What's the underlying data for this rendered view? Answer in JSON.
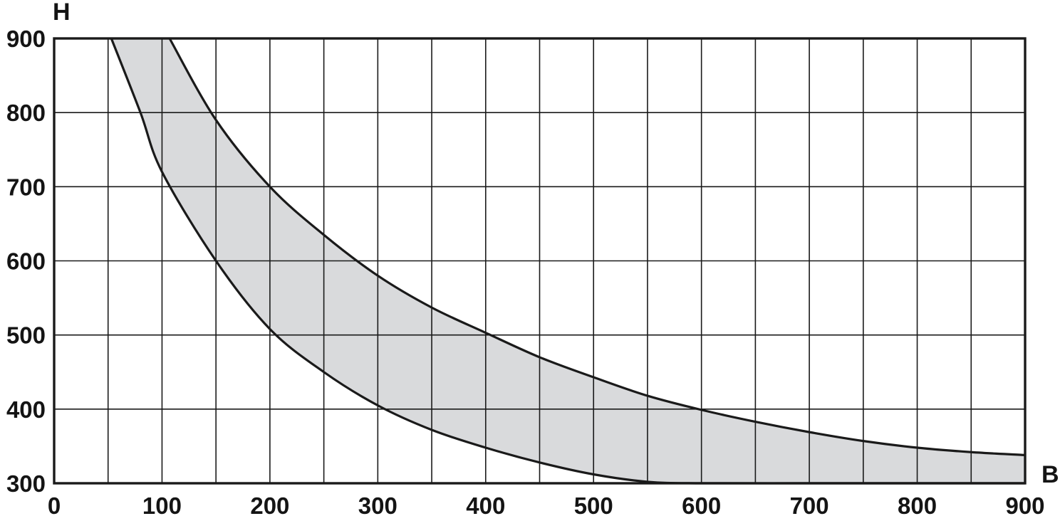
{
  "chart_data": {
    "type": "area",
    "title": "",
    "xlabel": "B",
    "ylabel": "H",
    "xlim": [
      0,
      900
    ],
    "ylim": [
      300,
      900
    ],
    "grid": true,
    "x_ticks": [
      0,
      100,
      200,
      300,
      400,
      500,
      600,
      700,
      800,
      900
    ],
    "y_ticks": [
      300,
      400,
      500,
      600,
      700,
      800,
      900
    ],
    "x_tick_labels": [
      "0",
      "100",
      "200",
      "300",
      "400",
      "500",
      "600",
      "700",
      "800",
      "900"
    ],
    "y_tick_labels": [
      "300",
      "400",
      "500",
      "600",
      "700",
      "800",
      "900"
    ],
    "series": [
      {
        "x": [
          53,
          80,
          100,
          150,
          200,
          250,
          300,
          350,
          400,
          450,
          500,
          550,
          600,
          700,
          800,
          900
        ],
        "y": [
          900,
          800,
          720,
          600,
          508,
          450,
          405,
          372,
          348,
          328,
          312,
          302,
          300,
          300,
          300,
          300
        ]
      },
      {
        "x": [
          107,
          150,
          200,
          250,
          300,
          350,
          400,
          450,
          500,
          550,
          600,
          650,
          700,
          750,
          800,
          850,
          900
        ],
        "y": [
          900,
          790,
          700,
          635,
          580,
          537,
          503,
          470,
          443,
          418,
          399,
          383,
          369,
          357,
          348,
          342,
          338
        ]
      }
    ],
    "colors": {
      "band_fill": "#d9dadc",
      "line": "#1a1a1a",
      "grid": "#1a1a1a",
      "frame": "#1a1a1a"
    }
  }
}
